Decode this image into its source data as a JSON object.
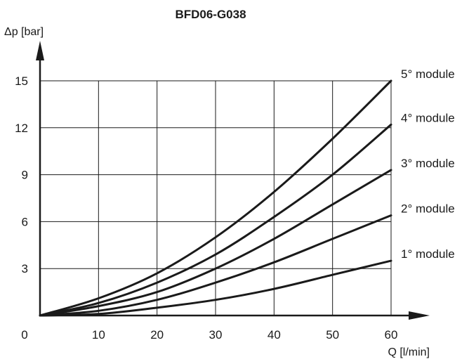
{
  "chart_data": {
    "type": "line",
    "title": "BFD06-G038",
    "xlabel": "Q [l/min]",
    "ylabel": "Δp [bar]",
    "origin_label": "0",
    "xlim": [
      0,
      60
    ],
    "ylim": [
      0,
      15
    ],
    "xticks": [
      10,
      20,
      30,
      40,
      50,
      60
    ],
    "yticks": [
      3,
      6,
      9,
      12,
      15
    ],
    "grid": true,
    "legend": "labels at right end of each curve",
    "x": [
      0,
      10,
      20,
      30,
      40,
      50,
      60
    ],
    "series": [
      {
        "name": "1° module",
        "values": [
          0,
          0.1,
          0.5,
          1.0,
          1.7,
          2.6,
          3.5
        ]
      },
      {
        "name": "2° module",
        "values": [
          0,
          0.3,
          1.0,
          2.1,
          3.4,
          4.9,
          6.4
        ]
      },
      {
        "name": "3° module",
        "values": [
          0,
          0.6,
          1.5,
          3.0,
          4.9,
          7.1,
          9.3
        ]
      },
      {
        "name": "4° module",
        "values": [
          0,
          0.8,
          2.1,
          3.9,
          6.3,
          9.0,
          12.2
        ]
      },
      {
        "name": "5° module",
        "values": [
          0,
          1.1,
          2.7,
          5.0,
          7.9,
          11.3,
          15.0
        ]
      }
    ]
  }
}
